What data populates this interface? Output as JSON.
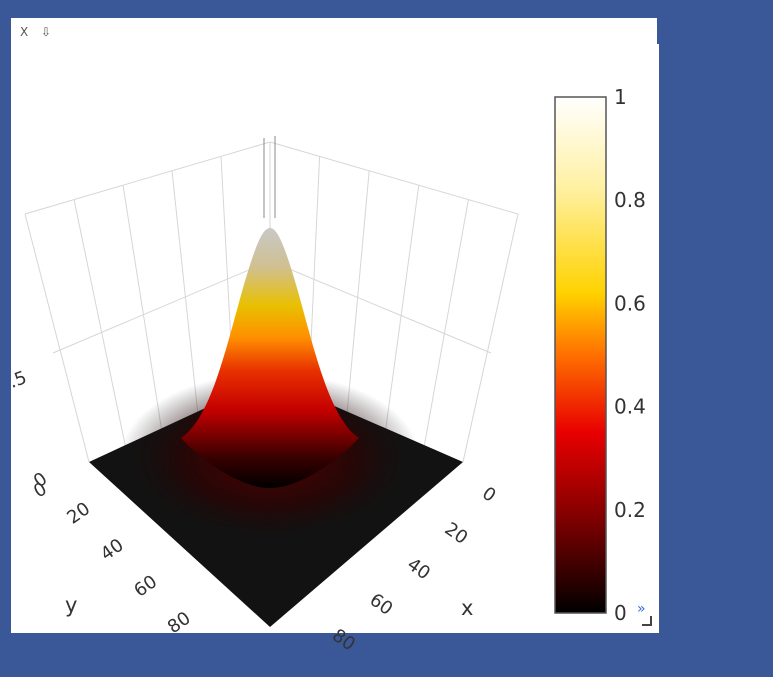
{
  "window": {
    "close_label": "X",
    "pin_label": "⇩",
    "expand_label": "»"
  },
  "colors": {
    "background": "#3a5797",
    "panel": "#ffffff",
    "surface_low": "#121212",
    "grid": "#d6d6d6"
  },
  "chart_data": {
    "type": "surface3d",
    "function": "gaussian peak",
    "peak_value": 1,
    "x_ticks": [
      "0",
      "20",
      "40",
      "60",
      "80"
    ],
    "y_ticks": [
      "0",
      "20",
      "40",
      "60",
      "80"
    ],
    "z_ticks": [
      ".5",
      "0"
    ],
    "xlabel": "x",
    "ylabel": "y",
    "zlabel": "",
    "xlim": [
      0,
      100
    ],
    "ylim": [
      0,
      100
    ],
    "zlim": [
      0,
      1
    ],
    "colorscale": [
      "#000000",
      "#8b0000",
      "#e80000",
      "#ff7a00",
      "#ffd000",
      "#ffffff"
    ],
    "colorbar_ticks": [
      "1",
      "0.8",
      "0.6",
      "0.4",
      "0.2",
      "0"
    ]
  }
}
